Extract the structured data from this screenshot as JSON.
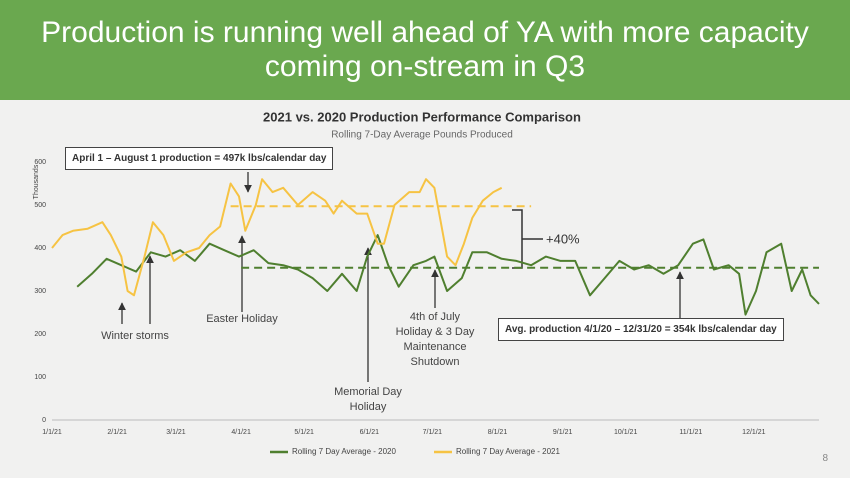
{
  "header": {
    "title": "Production is running well ahead of YA with more capacity coming on-stream in Q3"
  },
  "page_number": "8",
  "chart_data": {
    "type": "line",
    "title": "2021 vs. 2020 Production Performance Comparison",
    "subtitle": "Rolling 7-Day Average Pounds Produced",
    "y_label": "Thousands",
    "xlim": [
      0,
      365
    ],
    "xticks": [
      {
        "value": 0,
        "label": "1/1/21"
      },
      {
        "value": 31,
        "label": "2/1/21"
      },
      {
        "value": 59,
        "label": "3/1/21"
      },
      {
        "value": 90,
        "label": "4/1/21"
      },
      {
        "value": 120,
        "label": "5/1/21"
      },
      {
        "value": 151,
        "label": "6/1/21"
      },
      {
        "value": 181,
        "label": "7/1/21"
      },
      {
        "value": 212,
        "label": "8/1/21"
      },
      {
        "value": 243,
        "label": "9/1/21"
      },
      {
        "value": 273,
        "label": "10/1/21"
      },
      {
        "value": 304,
        "label": "11/1/21"
      },
      {
        "value": 334,
        "label": "12/1/21"
      }
    ],
    "ylim": [
      0,
      600
    ],
    "yticks": [
      0,
      100,
      200,
      300,
      400,
      500,
      600
    ],
    "series": [
      {
        "name": "Rolling 7 Day Average - 2020",
        "color": "#4f7f2f",
        "x": [
          12,
          19,
          26,
          33,
          40,
          47,
          54,
          61,
          68,
          75,
          82,
          89,
          96,
          103,
          110,
          117,
          124,
          131,
          138,
          145,
          150,
          155,
          160,
          165,
          172,
          178,
          182,
          188,
          195,
          200,
          207,
          214,
          221,
          228,
          235,
          242,
          249,
          256,
          263,
          270,
          277,
          284,
          291,
          298,
          305,
          310,
          315,
          322,
          327,
          330,
          335,
          340,
          347,
          352,
          357,
          361,
          365
        ],
        "values": [
          310,
          340,
          375,
          360,
          345,
          390,
          380,
          395,
          370,
          410,
          395,
          380,
          395,
          365,
          360,
          350,
          330,
          300,
          340,
          300,
          380,
          430,
          360,
          310,
          360,
          370,
          380,
          300,
          330,
          390,
          390,
          375,
          370,
          360,
          380,
          370,
          370,
          290,
          330,
          370,
          350,
          360,
          340,
          360,
          410,
          420,
          350,
          360,
          340,
          245,
          300,
          390,
          410,
          300,
          350,
          290,
          270
        ]
      },
      {
        "name": "Rolling 7 Day Average - 2021",
        "color": "#f6c343",
        "x": [
          0,
          5,
          10,
          17,
          24,
          28,
          33,
          36,
          39,
          44,
          48,
          53,
          58,
          64,
          70,
          75,
          80,
          85,
          89,
          92,
          97,
          100,
          105,
          110,
          117,
          124,
          130,
          134,
          138,
          145,
          150,
          155,
          158,
          163,
          170,
          175,
          178,
          182,
          185,
          188,
          192,
          196,
          200,
          205,
          210,
          214
        ],
        "values": [
          400,
          430,
          440,
          445,
          460,
          430,
          380,
          300,
          290,
          380,
          460,
          430,
          370,
          390,
          400,
          430,
          450,
          550,
          520,
          440,
          500,
          560,
          530,
          540,
          500,
          530,
          510,
          480,
          510,
          480,
          480,
          410,
          410,
          500,
          530,
          530,
          560,
          540,
          460,
          380,
          360,
          410,
          470,
          510,
          530,
          540
        ]
      }
    ],
    "reference_lines": [
      {
        "value": 497,
        "color": "#f6c343"
      },
      {
        "value": 354,
        "color": "#4f7f2f"
      }
    ],
    "annotations": [
      "April 1 – August 1 production = 497k lbs/calendar day",
      "Avg. production 4/1/20 – 12/31/20 = 354k lbs/calendar day",
      "Winter storms",
      "Easter Holiday",
      "Memorial Day Holiday",
      "4th of July Holiday & 3 Day Maintenance Shutdown",
      "+40%"
    ]
  }
}
